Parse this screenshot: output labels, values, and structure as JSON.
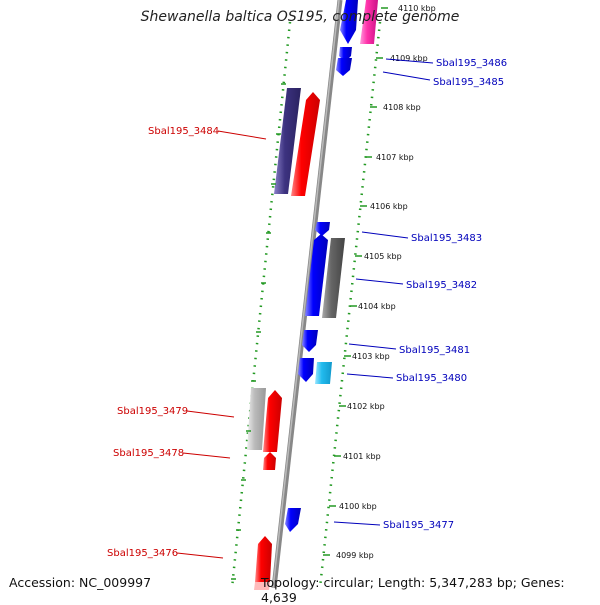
{
  "title": "Shewanella baltica OS195, complete genome",
  "footer": {
    "accession": "Accession: NC_009997",
    "topology": "Topology: circular; Length: 5,347,283 bp; Genes: 4,639"
  },
  "colors": {
    "forward_gene": "#ff0000",
    "reverse_gene": "#0000ff",
    "forward_label": "#cc0000",
    "reverse_label": "#0000bb",
    "backbone": "#888888",
    "ruler": "#229922",
    "dark_purple": "#3d3380",
    "gray": "#666666",
    "light_gray": "#bbbbbb",
    "cyan": "#22bbee",
    "pink": "#ff33aa"
  },
  "ticks": [
    "4110 kbp",
    "4109 kbp",
    "4108 kbp",
    "4107 kbp",
    "4106 kbp",
    "4105 kbp",
    "4104 kbp",
    "4103 kbp",
    "4102 kbp",
    "4101 kbp",
    "4100 kbp",
    "4099 kbp"
  ],
  "genes": [
    {
      "label": "Sbal195_3486",
      "strand": "reverse"
    },
    {
      "label": "Sbal195_3485",
      "strand": "reverse"
    },
    {
      "label": "Sbal195_3484",
      "strand": "forward"
    },
    {
      "label": "Sbal195_3483",
      "strand": "reverse"
    },
    {
      "label": "Sbal195_3482",
      "strand": "reverse"
    },
    {
      "label": "Sbal195_3481",
      "strand": "reverse"
    },
    {
      "label": "Sbal195_3480",
      "strand": "reverse"
    },
    {
      "label": "Sbal195_3479",
      "strand": "forward"
    },
    {
      "label": "Sbal195_3478",
      "strand": "forward"
    },
    {
      "label": "Sbal195_3477",
      "strand": "reverse"
    },
    {
      "label": "Sbal195_3476",
      "strand": "forward"
    }
  ]
}
